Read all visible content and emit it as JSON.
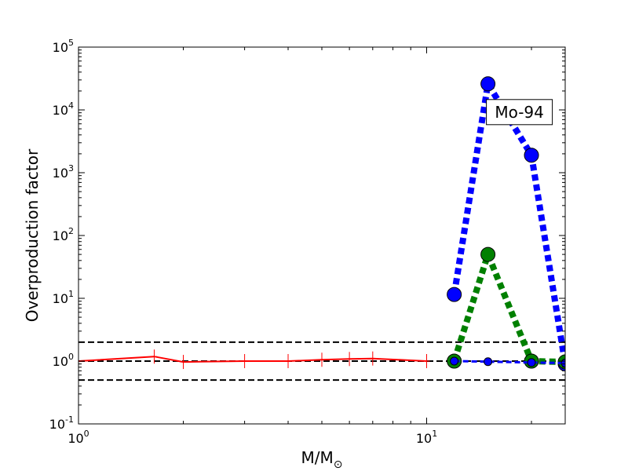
{
  "chart_data": {
    "type": "line",
    "title": "",
    "xlabel": "M/M",
    "xlabel_symbol": "⊙",
    "ylabel": "Overproduction factor",
    "xscale": "log",
    "yscale": "log",
    "xlim": [
      1,
      25
    ],
    "ylim": [
      0.1,
      100000
    ],
    "grid": false,
    "legend": "none",
    "x_ticks": [
      {
        "value": 1,
        "base": "10",
        "exp": "0"
      },
      {
        "value": 10,
        "base": "10",
        "exp": "1"
      }
    ],
    "y_ticks": [
      {
        "value": 0.1,
        "base": "10",
        "exp": "-1"
      },
      {
        "value": 1,
        "base": "10",
        "exp": "0"
      },
      {
        "value": 10,
        "base": "10",
        "exp": "1"
      },
      {
        "value": 100,
        "base": "10",
        "exp": "2"
      },
      {
        "value": 1000,
        "base": "10",
        "exp": "3"
      },
      {
        "value": 10000,
        "base": "10",
        "exp": "4"
      },
      {
        "value": 100000,
        "base": "10",
        "exp": "5"
      }
    ],
    "reference_lines": [
      {
        "y": 2.0,
        "color": "#000000",
        "style": "dashed"
      },
      {
        "y": 1.0,
        "color": "#000000",
        "style": "dashed"
      },
      {
        "y": 0.5,
        "color": "#000000",
        "style": "dashed"
      }
    ],
    "series": [
      {
        "color": "#ff0000",
        "style": "solid",
        "marker": "plus",
        "x": [
          1,
          1.65,
          2,
          3,
          4,
          5,
          6,
          7,
          10
        ],
        "y": [
          1.0,
          1.18,
          0.97,
          1.0,
          1.0,
          1.05,
          1.08,
          1.1,
          1.0
        ]
      },
      {
        "color": "#0000ff",
        "style": "dotted",
        "marker": "circle",
        "x": [
          12,
          15,
          20,
          25
        ],
        "y": [
          11.5,
          26000,
          1900,
          0.9
        ]
      },
      {
        "color": "#008000",
        "style": "dotted",
        "marker": "circle",
        "x": [
          12,
          15,
          20,
          25
        ],
        "y": [
          1.0,
          50,
          1.0,
          0.97
        ]
      },
      {
        "color": "#0000ff",
        "style": "dashed",
        "marker": "small-circle",
        "x": [
          12,
          15,
          20,
          25
        ],
        "y": [
          1.0,
          0.98,
          0.95,
          0.93
        ]
      }
    ],
    "annotations": [
      {
        "text": "Mo-94",
        "x": 15,
        "y": 26000
      }
    ]
  }
}
